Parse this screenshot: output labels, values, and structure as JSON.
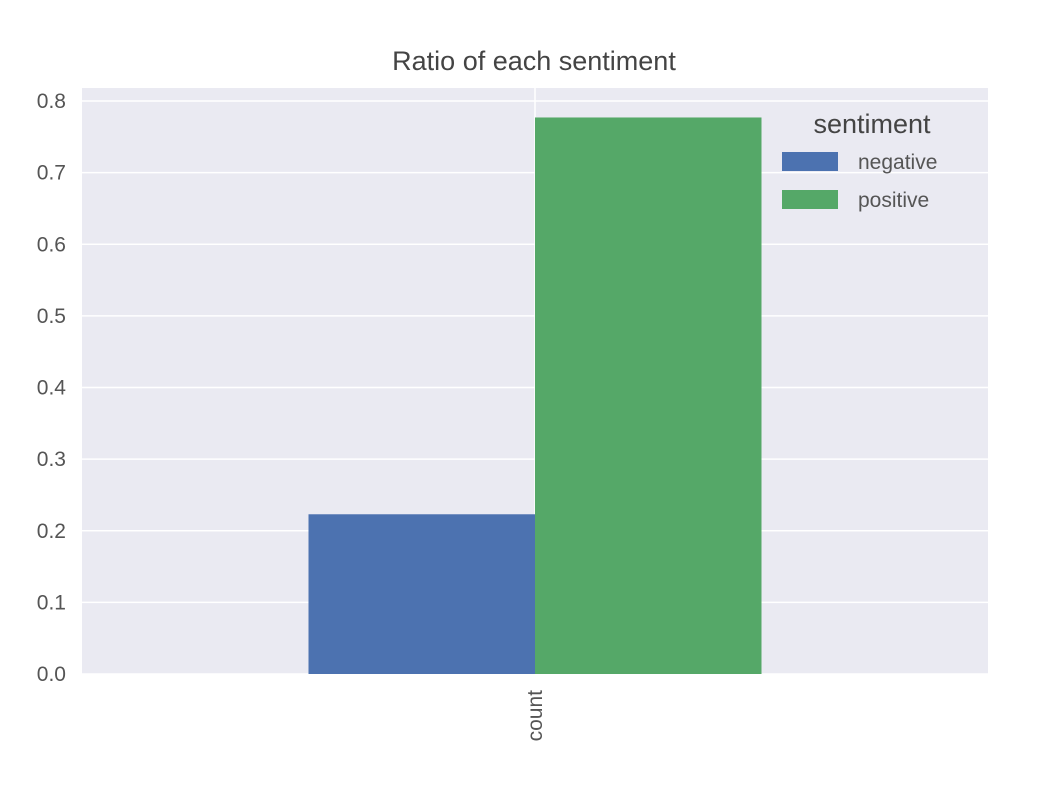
{
  "chart_data": {
    "type": "bar",
    "title": "Ratio of each sentiment",
    "categories": [
      "count"
    ],
    "series": [
      {
        "name": "negative",
        "values": [
          0.223
        ],
        "color": "#4c72b0"
      },
      {
        "name": "positive",
        "values": [
          0.777
        ],
        "color": "#55a868"
      }
    ],
    "xlabel": "",
    "ylabel": "",
    "ylim": [
      0,
      0.8
    ],
    "yticks": [
      "0.0",
      "0.1",
      "0.2",
      "0.3",
      "0.4",
      "0.5",
      "0.6",
      "0.7",
      "0.8"
    ],
    "grid": true,
    "legend": {
      "title": "sentiment",
      "placement": "top-right"
    },
    "colors": {
      "plot_background": "#eaeaf2",
      "grid": "#ffffff"
    }
  }
}
